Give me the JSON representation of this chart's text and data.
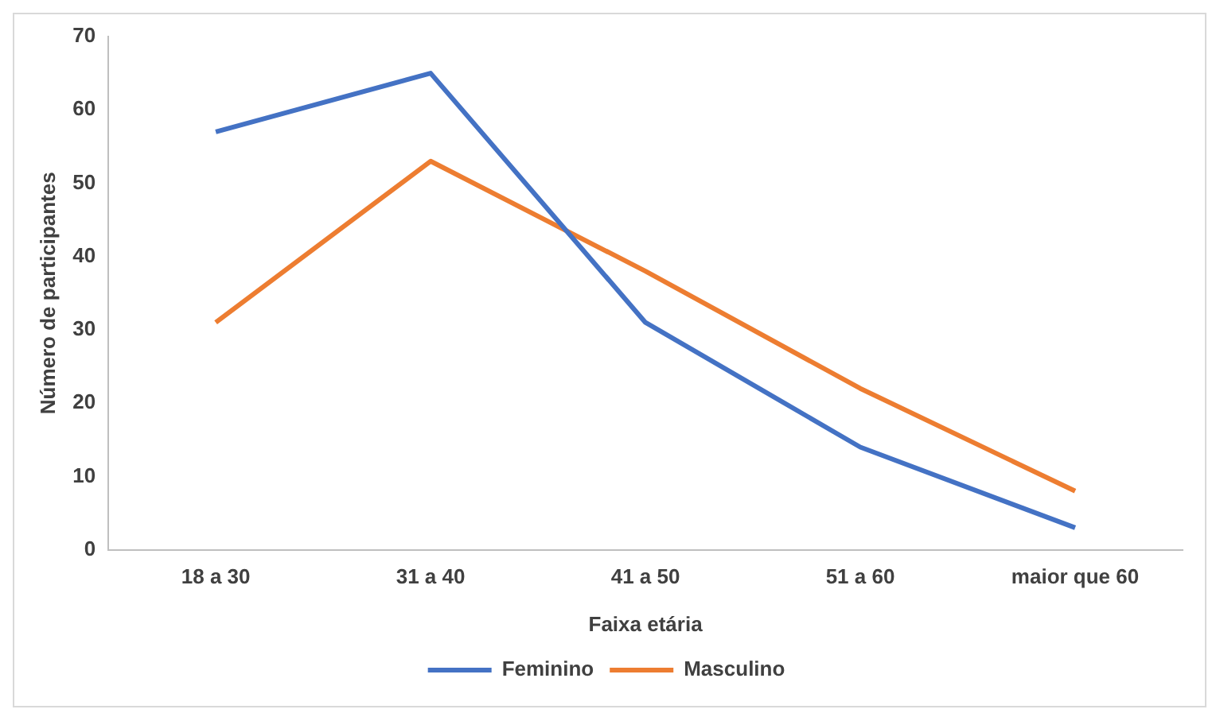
{
  "chart_data": {
    "type": "line",
    "xlabel": "Faixa etária",
    "ylabel": "Número de participantes",
    "categories": [
      "18 a 30",
      "31 a 40",
      "41 a 50",
      "51 a 60",
      "maior que 60"
    ],
    "series": [
      {
        "name": "Feminino",
        "color": "#4472c4",
        "values": [
          57,
          65,
          31,
          14,
          3
        ]
      },
      {
        "name": "Masculino",
        "color": "#ed7d31",
        "values": [
          31,
          53,
          38,
          22,
          8
        ]
      }
    ],
    "ylim": [
      0,
      70
    ],
    "yticks": [
      0,
      10,
      20,
      30,
      40,
      50,
      60,
      70
    ],
    "grid": false,
    "legend": "bottom",
    "marker": "none",
    "line_style": "solid"
  }
}
